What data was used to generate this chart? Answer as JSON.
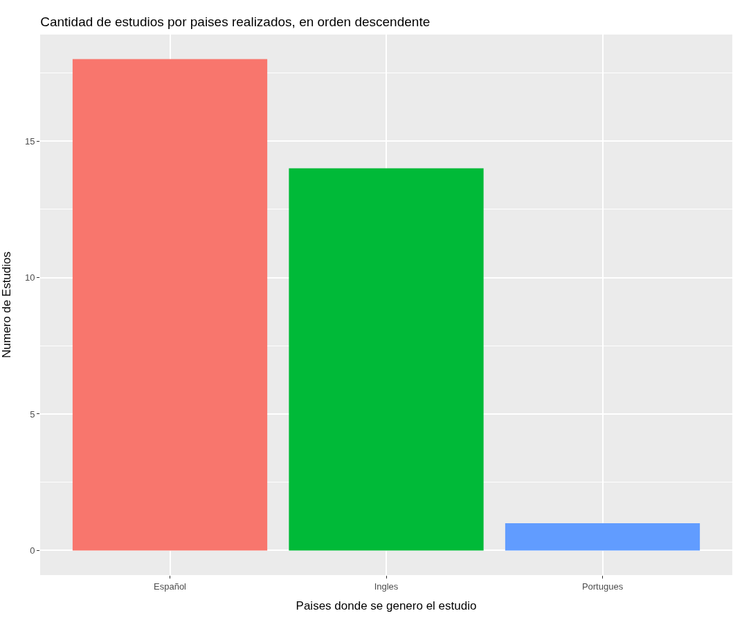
{
  "chart_data": {
    "type": "bar",
    "title": "Cantidad de estudios por paises realizados, en orden descendente",
    "xlabel": "Paises donde se genero el estudio",
    "ylabel": "Numero de Estudios",
    "categories": [
      "Español",
      "Ingles",
      "Portugues"
    ],
    "values": [
      18,
      14,
      1
    ],
    "colors": [
      "#f8766d",
      "#00ba38",
      "#619cff"
    ],
    "ylim": [
      -0.9,
      18.9
    ],
    "yticks": [
      0,
      5,
      10,
      15
    ],
    "grid": true
  }
}
